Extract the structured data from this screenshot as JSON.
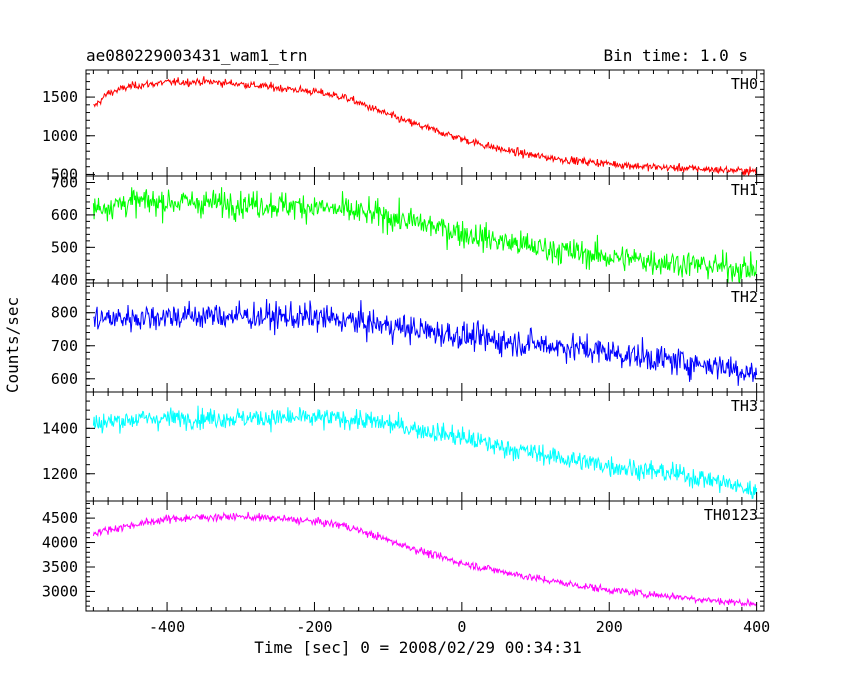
{
  "header": {
    "title": "ae080229003431_wam1_trn",
    "bin_time": "Bin time: 1.0 s"
  },
  "chart_data": {
    "type": "line",
    "xlabel": "Time [sec] 0 = 2008/02/29 00:34:31",
    "ylabel": "Counts/sec",
    "xlim": [
      -510,
      410
    ],
    "xticks": [
      -400,
      -200,
      0,
      200,
      400
    ],
    "x_start": -500,
    "x_end": 400,
    "bin": 1.0,
    "panels": [
      {
        "name": "TH0",
        "color": "#ff0000",
        "ylim": [
          480,
          1850
        ],
        "yticks": [
          500,
          1000,
          1500
        ],
        "noise": 45,
        "knots": [
          [
            -500,
            1370
          ],
          [
            -480,
            1550
          ],
          [
            -450,
            1640
          ],
          [
            -400,
            1690
          ],
          [
            -350,
            1700
          ],
          [
            -300,
            1670
          ],
          [
            -250,
            1620
          ],
          [
            -200,
            1570
          ],
          [
            -160,
            1500
          ],
          [
            -120,
            1350
          ],
          [
            -80,
            1200
          ],
          [
            -40,
            1080
          ],
          [
            0,
            960
          ],
          [
            50,
            830
          ],
          [
            100,
            740
          ],
          [
            150,
            680
          ],
          [
            200,
            640
          ],
          [
            250,
            600
          ],
          [
            300,
            580
          ],
          [
            350,
            560
          ],
          [
            400,
            540
          ]
        ]
      },
      {
        "name": "TH1",
        "color": "#00ff00",
        "ylim": [
          390,
          720
        ],
        "yticks": [
          400,
          500,
          600,
          700
        ],
        "noise": 38,
        "knots": [
          [
            -500,
            620
          ],
          [
            -450,
            640
          ],
          [
            -400,
            640
          ],
          [
            -300,
            635
          ],
          [
            -200,
            625
          ],
          [
            -150,
            610
          ],
          [
            -100,
            595
          ],
          [
            -50,
            570
          ],
          [
            0,
            545
          ],
          [
            50,
            520
          ],
          [
            100,
            500
          ],
          [
            150,
            485
          ],
          [
            200,
            470
          ],
          [
            250,
            460
          ],
          [
            300,
            450
          ],
          [
            350,
            440
          ],
          [
            400,
            430
          ]
        ]
      },
      {
        "name": "TH2",
        "color": "#0000ff",
        "ylim": [
          560,
          890
        ],
        "yticks": [
          600,
          700,
          800
        ],
        "noise": 38,
        "knots": [
          [
            -500,
            780
          ],
          [
            -450,
            785
          ],
          [
            -400,
            790
          ],
          [
            -300,
            790
          ],
          [
            -200,
            785
          ],
          [
            -150,
            775
          ],
          [
            -100,
            760
          ],
          [
            -50,
            745
          ],
          [
            0,
            730
          ],
          [
            50,
            715
          ],
          [
            100,
            705
          ],
          [
            150,
            695
          ],
          [
            200,
            680
          ],
          [
            250,
            665
          ],
          [
            300,
            650
          ],
          [
            350,
            640
          ],
          [
            400,
            615
          ]
        ]
      },
      {
        "name": "TH3",
        "color": "#00ffff",
        "ylim": [
          1080,
          1560
        ],
        "yticks": [
          1200,
          1400
        ],
        "noise": 40,
        "knots": [
          [
            -500,
            1420
          ],
          [
            -450,
            1440
          ],
          [
            -400,
            1445
          ],
          [
            -300,
            1445
          ],
          [
            -200,
            1445
          ],
          [
            -150,
            1440
          ],
          [
            -100,
            1420
          ],
          [
            -50,
            1390
          ],
          [
            0,
            1360
          ],
          [
            50,
            1320
          ],
          [
            100,
            1290
          ],
          [
            150,
            1260
          ],
          [
            200,
            1235
          ],
          [
            250,
            1215
          ],
          [
            300,
            1195
          ],
          [
            350,
            1165
          ],
          [
            400,
            1120
          ]
        ]
      },
      {
        "name": "TH0123",
        "color": "#ff00ff",
        "ylim": [
          2600,
          4850
        ],
        "yticks": [
          3000,
          3500,
          4000,
          4500
        ],
        "noise": 70,
        "knots": [
          [
            -500,
            4200
          ],
          [
            -450,
            4350
          ],
          [
            -400,
            4480
          ],
          [
            -350,
            4520
          ],
          [
            -300,
            4530
          ],
          [
            -250,
            4490
          ],
          [
            -200,
            4430
          ],
          [
            -160,
            4350
          ],
          [
            -120,
            4150
          ],
          [
            -80,
            3950
          ],
          [
            -40,
            3750
          ],
          [
            0,
            3580
          ],
          [
            50,
            3420
          ],
          [
            100,
            3270
          ],
          [
            150,
            3140
          ],
          [
            200,
            3030
          ],
          [
            250,
            2950
          ],
          [
            300,
            2880
          ],
          [
            350,
            2800
          ],
          [
            400,
            2750
          ]
        ]
      }
    ]
  }
}
